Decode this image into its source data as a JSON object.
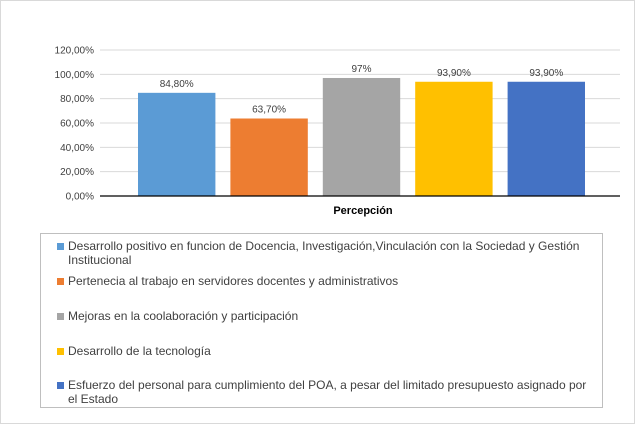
{
  "chart_data": {
    "type": "bar",
    "xlabel": "Percepción",
    "ylabel": "",
    "ylim": [
      0,
      120
    ],
    "yticks": [
      "0,00%",
      "20,00%",
      "40,00%",
      "60,00%",
      "80,00%",
      "100,00%",
      "120,00%"
    ],
    "grid": true,
    "legend_placement": "bottom",
    "series": [
      {
        "name": "Desarrollo positivo en funcion de Docencia, Investigación,Vinculación con la Sociedad y Gestión Institucional",
        "value": 84.8,
        "label": "84,80%",
        "color": "#5b9bd5"
      },
      {
        "name": "Pertenecia al trabajo en servidores docentes y administrativos",
        "value": 63.7,
        "label": "63,70%",
        "color": "#ed7d31"
      },
      {
        "name": "Mejoras en la coolaboración y participación",
        "value": 97,
        "label": "97%",
        "color": "#a5a5a5"
      },
      {
        "name": "Desarrollo de la tecnología",
        "value": 93.9,
        "label": "93,90%",
        "color": "#ffc000"
      },
      {
        "name": "Esfuerzo del personal para cumplimiento del POA, a pesar del limitado presupuesto asignado por el Estado",
        "value": 93.9,
        "label": "93,90%",
        "color": "#4472c4"
      }
    ]
  }
}
